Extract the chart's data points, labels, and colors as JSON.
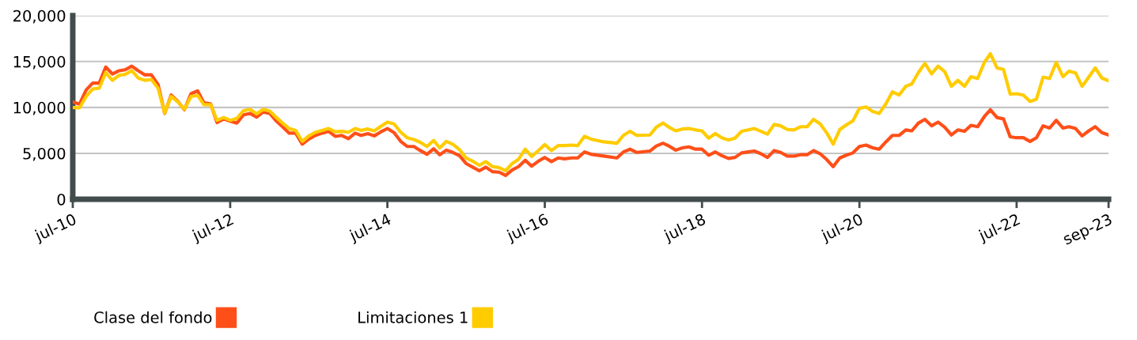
{
  "chart_data": {
    "type": "line",
    "x": [
      "2010-07",
      "2010-08",
      "2010-09",
      "2010-10",
      "2010-11",
      "2010-12",
      "2011-01",
      "2011-02",
      "2011-03",
      "2011-04",
      "2011-05",
      "2011-06",
      "2011-07",
      "2011-08",
      "2011-09",
      "2011-10",
      "2011-11",
      "2011-12",
      "2012-01",
      "2012-02",
      "2012-03",
      "2012-04",
      "2012-05",
      "2012-06",
      "2012-07",
      "2012-08",
      "2012-09",
      "2012-10",
      "2012-11",
      "2012-12",
      "2013-01",
      "2013-02",
      "2013-03",
      "2013-04",
      "2013-05",
      "2013-06",
      "2013-07",
      "2013-08",
      "2013-09",
      "2013-10",
      "2013-11",
      "2013-12",
      "2014-01",
      "2014-02",
      "2014-03",
      "2014-04",
      "2014-05",
      "2014-06",
      "2014-07",
      "2014-08",
      "2014-09",
      "2014-10",
      "2014-11",
      "2014-12",
      "2015-01",
      "2015-02",
      "2015-03",
      "2015-04",
      "2015-05",
      "2015-06",
      "2015-07",
      "2015-08",
      "2015-09",
      "2015-10",
      "2015-11",
      "2015-12",
      "2016-01",
      "2016-02",
      "2016-03",
      "2016-04",
      "2016-05",
      "2016-06",
      "2016-07",
      "2016-08",
      "2016-09",
      "2016-10",
      "2016-11",
      "2016-12",
      "2017-01",
      "2017-02",
      "2017-04",
      "2017-06",
      "2017-07",
      "2017-08",
      "2017-09",
      "2017-11",
      "2017-12",
      "2018-01",
      "2018-02",
      "2018-03",
      "2018-04",
      "2018-05",
      "2018-06",
      "2018-07",
      "2018-08",
      "2018-09",
      "2018-10",
      "2018-11",
      "2018-12",
      "2019-01",
      "2019-02",
      "2019-03",
      "2019-04",
      "2019-05",
      "2019-06",
      "2019-07",
      "2019-08",
      "2019-09",
      "2019-10",
      "2019-11",
      "2019-12",
      "2020-01",
      "2020-02",
      "2020-03",
      "2020-04",
      "2020-05",
      "2020-06",
      "2020-07",
      "2020-08",
      "2020-09",
      "2020-10",
      "2020-11",
      "2020-12",
      "2021-01",
      "2021-02",
      "2021-03",
      "2021-04",
      "2021-05",
      "2021-06",
      "2021-07",
      "2021-08",
      "2021-09",
      "2021-10",
      "2021-11",
      "2021-12",
      "2022-01",
      "2022-02",
      "2022-03",
      "2022-04",
      "2022-05",
      "2022-06",
      "2022-07",
      "2022-08",
      "2022-09",
      "2022-10",
      "2022-11",
      "2022-12",
      "2023-01",
      "2023-02",
      "2023-03",
      "2023-04",
      "2023-05",
      "2023-06",
      "2023-07",
      "2023-08",
      "2023-09"
    ],
    "series": [
      {
        "name": "Clase del fondo",
        "color": "#ff4f19",
        "values": [
          10600,
          10350,
          11900,
          12650,
          12650,
          14400,
          13650,
          14000,
          14100,
          14500,
          14000,
          13550,
          13550,
          12500,
          9350,
          11350,
          10650,
          9750,
          11500,
          11800,
          10500,
          10400,
          8350,
          8750,
          8500,
          8300,
          9200,
          9350,
          8950,
          9500,
          9350,
          8500,
          7900,
          7200,
          7200,
          6000,
          6550,
          6950,
          7200,
          7400,
          6850,
          6950,
          6600,
          7200,
          6950,
          7150,
          6900,
          7350,
          7700,
          7250,
          6300,
          5750,
          5750,
          5300,
          4900,
          5500,
          4850,
          5350,
          5100,
          4750,
          3900,
          3500,
          3100,
          3500,
          3000,
          2950,
          2600,
          3200,
          3550,
          4250,
          3600,
          4150,
          4550,
          4100,
          4500,
          4400,
          4500,
          4500,
          5150,
          4900,
          4700,
          4500,
          5150,
          5450,
          5100,
          5250,
          5800,
          6100,
          5750,
          5350,
          5600,
          5700,
          5450,
          5450,
          4800,
          5150,
          4750,
          4450,
          4550,
          5050,
          5150,
          5250,
          4950,
          4550,
          5300,
          5100,
          4700,
          4700,
          4850,
          4850,
          5300,
          4950,
          4300,
          3550,
          4500,
          4800,
          5050,
          5750,
          5900,
          5600,
          5450,
          6250,
          6950,
          6950,
          7550,
          7450,
          8300,
          8700,
          8000,
          8400,
          7850,
          7000,
          7550,
          7400,
          8050,
          7900,
          9000,
          9750,
          8900,
          8750,
          6800,
          6700,
          6700,
          6300,
          6700,
          8000,
          7750,
          8600,
          7750,
          7900,
          7700,
          6900,
          7450,
          7900,
          7250,
          7000
        ]
      },
      {
        "name": "Limitaciones 1",
        "color": "#ffcc00",
        "values": [
          10000,
          9950,
          11200,
          12000,
          12100,
          13800,
          12950,
          13500,
          13600,
          14000,
          13200,
          12950,
          13050,
          12100,
          9400,
          11200,
          10600,
          9800,
          11200,
          11300,
          10300,
          10300,
          8600,
          8900,
          8600,
          8800,
          9650,
          9800,
          9300,
          9800,
          9600,
          8900,
          8300,
          7700,
          7500,
          6300,
          6900,
          7300,
          7500,
          7700,
          7350,
          7400,
          7300,
          7700,
          7500,
          7650,
          7450,
          7950,
          8400,
          8200,
          7300,
          6700,
          6500,
          6200,
          5750,
          6400,
          5600,
          6300,
          6000,
          5400,
          4500,
          4150,
          3700,
          4100,
          3550,
          3450,
          3100,
          3900,
          4350,
          5450,
          4650,
          5300,
          5950,
          5300,
          5850,
          5850,
          5900,
          5850,
          6850,
          6550,
          6250,
          6100,
          6950,
          7400,
          6950,
          7000,
          7850,
          8300,
          7800,
          7450,
          7650,
          7700,
          7550,
          7450,
          6650,
          7150,
          6700,
          6450,
          6650,
          7400,
          7550,
          7700,
          7400,
          7100,
          8150,
          8000,
          7600,
          7550,
          7900,
          7900,
          8700,
          8200,
          7200,
          6000,
          7600,
          8100,
          8550,
          9900,
          10050,
          9550,
          9350,
          10400,
          11700,
          11350,
          12300,
          12550,
          13800,
          14800,
          13650,
          14500,
          13900,
          12300,
          12950,
          12300,
          13350,
          13150,
          14900,
          15850,
          14300,
          14150,
          11450,
          11500,
          11350,
          10650,
          10900,
          13300,
          13150,
          14900,
          13350,
          13950,
          13750,
          12300,
          13300,
          14300,
          13200,
          12900
        ]
      }
    ],
    "xlim": [
      "2010-07",
      "2023-09"
    ],
    "xticks": [
      {
        "value": "2010-07",
        "label": "jul-10"
      },
      {
        "value": "2012-07",
        "label": "jul-12"
      },
      {
        "value": "2014-07",
        "label": "jul-14"
      },
      {
        "value": "2016-07",
        "label": "jul-16"
      },
      {
        "value": "2018-07",
        "label": "jul-18"
      },
      {
        "value": "2020-07",
        "label": "jul-20"
      },
      {
        "value": "2022-07",
        "label": "jul-22"
      },
      {
        "value": "2023-09",
        "label": "sep-23"
      }
    ],
    "ylim": [
      0,
      20000
    ],
    "yticks": [
      0,
      {
        "value": 5000,
        "label": "5,000"
      },
      {
        "value": 10000,
        "label": "10,000"
      },
      {
        "value": 15000,
        "label": "15,000"
      },
      {
        "value": 20000,
        "label": "20,000"
      }
    ],
    "grid": "y",
    "legend": "bottom left",
    "marker": "none",
    "line_style": "solid"
  }
}
